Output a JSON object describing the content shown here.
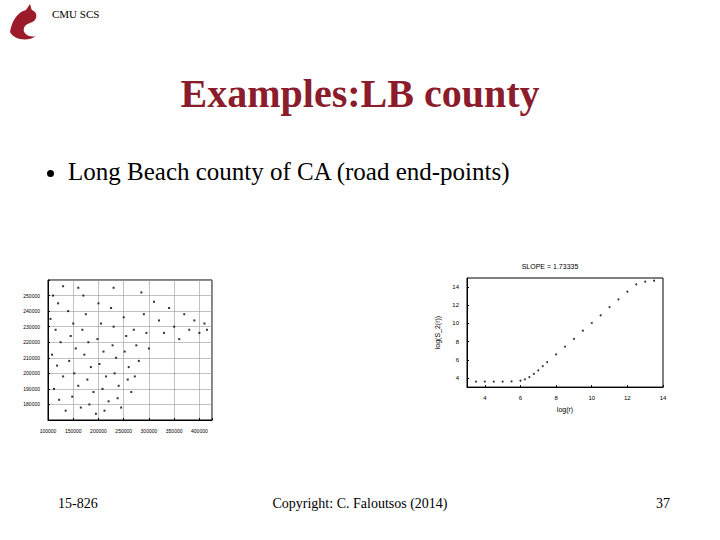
{
  "header": {
    "text": "CMU SCS"
  },
  "title": "Examples:LB county",
  "bullets": [
    "Long Beach county of CA (road end-points)"
  ],
  "footer": {
    "course": "15-826",
    "copyright": "Copyright: C. Faloutsos (2014)",
    "page": "37"
  },
  "chart_data": [
    {
      "type": "scatter",
      "color": "#000000",
      "marker": "square",
      "grid": true,
      "xlim": [
        100000,
        425000
      ],
      "xticks": [
        100000,
        150000,
        200000,
        250000,
        300000,
        350000,
        400000
      ],
      "ylim": [
        170000,
        260000
      ],
      "yticks": [
        180000,
        190000,
        200000,
        210000,
        220000,
        230000,
        240000,
        250000
      ],
      "x": [
        110000,
        120000,
        105000,
        115000,
        125000,
        108000,
        118000,
        130000,
        112000,
        122000,
        135000,
        140000,
        150000,
        145000,
        155000,
        142000,
        152000,
        160000,
        148000,
        165000,
        170000,
        175000,
        168000,
        180000,
        172000,
        185000,
        178000,
        190000,
        182000,
        195000,
        200000,
        205000,
        198000,
        210000,
        202000,
        215000,
        208000,
        220000,
        212000,
        225000,
        230000,
        228000,
        235000,
        232000,
        240000,
        238000,
        245000,
        250000,
        255000,
        252000,
        260000,
        258000,
        265000,
        270000,
        275000,
        280000,
        272000,
        285000,
        290000,
        295000,
        300000,
        310000,
        320000,
        330000,
        340000,
        350000,
        360000,
        370000,
        380000,
        390000,
        400000,
        410000,
        415000,
        160000,
        230000,
        130000
      ],
      "values": [
        250000,
        245000,
        235000,
        228000,
        220000,
        212000,
        205000,
        198000,
        190000,
        183000,
        176000,
        240000,
        232000,
        224000,
        216000,
        208000,
        200000,
        192000,
        185000,
        178000,
        250000,
        238000,
        228000,
        220000,
        212000,
        204000,
        196000,
        188000,
        180000,
        174000,
        245000,
        232000,
        222000,
        214000,
        206000,
        198000,
        190000,
        182000,
        176000,
        242000,
        230000,
        218000,
        210000,
        200000,
        192000,
        184000,
        178000,
        236000,
        224000,
        214000,
        204000,
        196000,
        188000,
        228000,
        218000,
        208000,
        198000,
        252000,
        238000,
        226000,
        216000,
        246000,
        234000,
        226000,
        242000,
        230000,
        222000,
        238000,
        228000,
        234000,
        226000,
        232000,
        228000,
        255000,
        255000,
        256000
      ]
    },
    {
      "type": "scatter",
      "title": "SLOPE = 1.73335",
      "x_label": "log(r)",
      "y_label": "log(S_2(r))",
      "color": "#000000",
      "marker": "circle",
      "grid": false,
      "xlim": [
        3,
        14
      ],
      "xticks": [
        4,
        6,
        8,
        10,
        12,
        14
      ],
      "ylim": [
        3,
        15
      ],
      "yticks": [
        4,
        6,
        8,
        10,
        12,
        14
      ],
      "x": [
        3.5,
        4,
        4.5,
        5,
        5.5,
        6,
        6.25,
        6.5,
        6.75,
        7,
        7.25,
        7.5,
        8,
        8.5,
        9,
        9.5,
        10,
        10.5,
        11,
        11.5,
        12,
        12.5,
        13,
        13.5
      ],
      "values": [
        3.6,
        3.6,
        3.6,
        3.6,
        3.62,
        3.7,
        3.85,
        4.1,
        4.45,
        4.85,
        5.3,
        5.75,
        6.6,
        7.45,
        8.3,
        9.2,
        10.05,
        10.9,
        11.8,
        12.65,
        13.5,
        14.3,
        14.6,
        14.7
      ]
    }
  ]
}
